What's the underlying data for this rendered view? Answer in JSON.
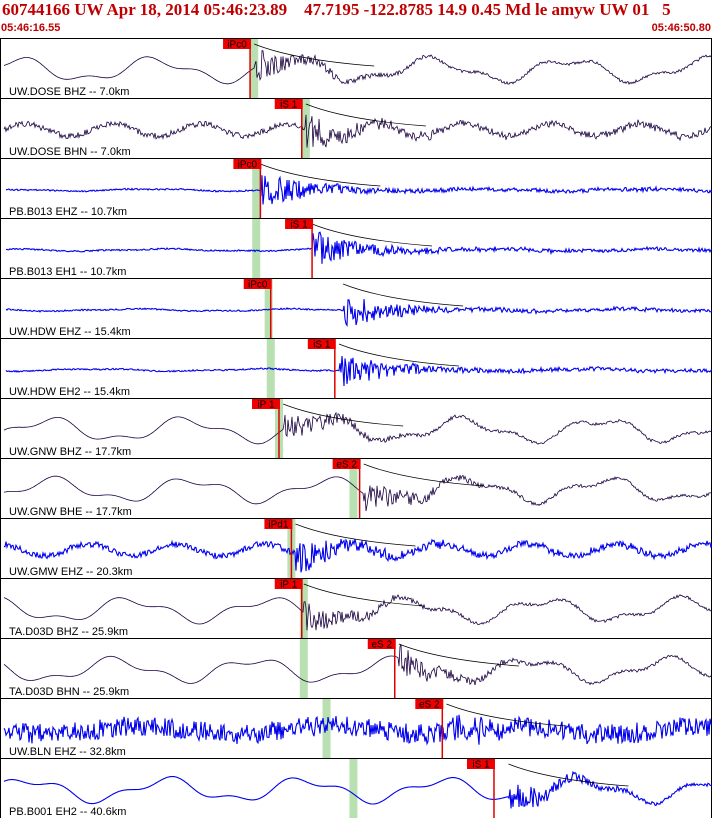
{
  "header": {
    "title": "60744166 UW Apr 18, 2014 05:46:23.89    47.7195 -122.8785 14.9 0.45 Md le amyw UW 01   5",
    "start_time": "05:46:16.55",
    "end_time": "05:46:50.80"
  },
  "colors": {
    "header_text": "#c00000",
    "pick_marker": "#dd0000",
    "pick_label_bg": "#ee0000",
    "coda_window": "#b8e0b0",
    "trace_blue": "#0000ee",
    "trace_dark": "#1a0040",
    "panel_border": "#000000"
  },
  "chart_data": {
    "type": "line",
    "x_unit": "s",
    "x_range": [
      "05:46:16.55",
      "05:46:50.80"
    ],
    "panels": [
      {
        "station": "UW.DOSE BHZ -- 7.0km",
        "distance_km": 7.0,
        "color": "dark",
        "style": "low",
        "pick": "iPc0",
        "pick_t": 12.0,
        "green_t": 12.2,
        "arrival_t": 12.2,
        "end_t": 36.0
      },
      {
        "station": "UW.DOSE BHN -- 7.0km",
        "distance_km": 7.0,
        "color": "dark",
        "style": "noisy",
        "pick": "iS 1",
        "pick_t": 14.5,
        "green_t": 14.7,
        "arrival_t": 14.7,
        "end_t": 36.0
      },
      {
        "station": "PB.B013 EHZ -- 10.7km",
        "distance_km": 10.7,
        "color": "blue",
        "style": "flat",
        "pick": "iPc0",
        "pick_t": 12.5,
        "green_t": 12.3,
        "arrival_t": 12.5,
        "end_t": 36.5
      },
      {
        "station": "PB.B013 EH1 -- 10.7km",
        "distance_km": 10.7,
        "color": "blue",
        "style": "flat",
        "pick": "iS 1",
        "pick_t": 15.0,
        "green_t": 12.3,
        "arrival_t": 15.0,
        "end_t": 36.5
      },
      {
        "station": "UW.HDW EHZ -- 15.4km",
        "distance_km": 15.4,
        "color": "blue",
        "style": "flat",
        "pick": "iPc0",
        "pick_t": 13.0,
        "green_t": 12.9,
        "arrival_t": 16.5,
        "end_t": 37.5
      },
      {
        "station": "UW.HDW EH2 -- 15.4km",
        "distance_km": 15.4,
        "color": "blue",
        "style": "flat",
        "pick": "iS 1",
        "pick_t": 16.1,
        "green_t": 13.0,
        "arrival_t": 16.3,
        "end_t": 37.5
      },
      {
        "station": "UW.GNW BHZ -- 17.7km",
        "distance_km": 17.7,
        "color": "dark",
        "style": "low",
        "pick": "iP 1",
        "pick_t": 13.4,
        "green_t": 13.4,
        "arrival_t": 13.6,
        "end_t": 37.5
      },
      {
        "station": "UW.GNW BHE -- 17.7km",
        "distance_km": 17.7,
        "color": "dark",
        "style": "low",
        "pick": "eS 2",
        "pick_t": 17.3,
        "green_t": 17.0,
        "arrival_t": 17.5,
        "end_t": 37.5
      },
      {
        "station": "UW.GMW EHZ -- 20.3km",
        "distance_km": 20.3,
        "color": "blue",
        "style": "noisy",
        "pick": "iPd1",
        "pick_t": 14.0,
        "green_t": 14.0,
        "arrival_t": 14.2,
        "end_t": 38.0
      },
      {
        "station": "TA.D03D BHZ -- 25.9km",
        "distance_km": 25.9,
        "color": "dark",
        "style": "low",
        "pick": "iP 1",
        "pick_t": 14.5,
        "green_t": 14.6,
        "arrival_t": 14.6,
        "end_t": 38.8
      },
      {
        "station": "TA.D03D BHN -- 25.9km",
        "distance_km": 25.9,
        "color": "dark",
        "style": "low",
        "pick": "eS 2",
        "pick_t": 19.0,
        "green_t": 14.6,
        "arrival_t": 19.2,
        "end_t": 38.8
      },
      {
        "station": "UW.BLN EHZ -- 32.8km",
        "distance_km": 32.8,
        "color": "blue",
        "style": "banded",
        "pick": "eS 2",
        "pick_t": 21.3,
        "green_t": 15.7,
        "arrival_t": 21.5,
        "end_t": 39.5
      },
      {
        "station": "PB.B001 EH2 -- 40.6km",
        "distance_km": 40.6,
        "color": "blue",
        "style": "low",
        "pick": "iS 1",
        "pick_t": 23.8,
        "green_t": 17.0,
        "arrival_t": 24.5,
        "end_t": 41.0
      }
    ]
  }
}
